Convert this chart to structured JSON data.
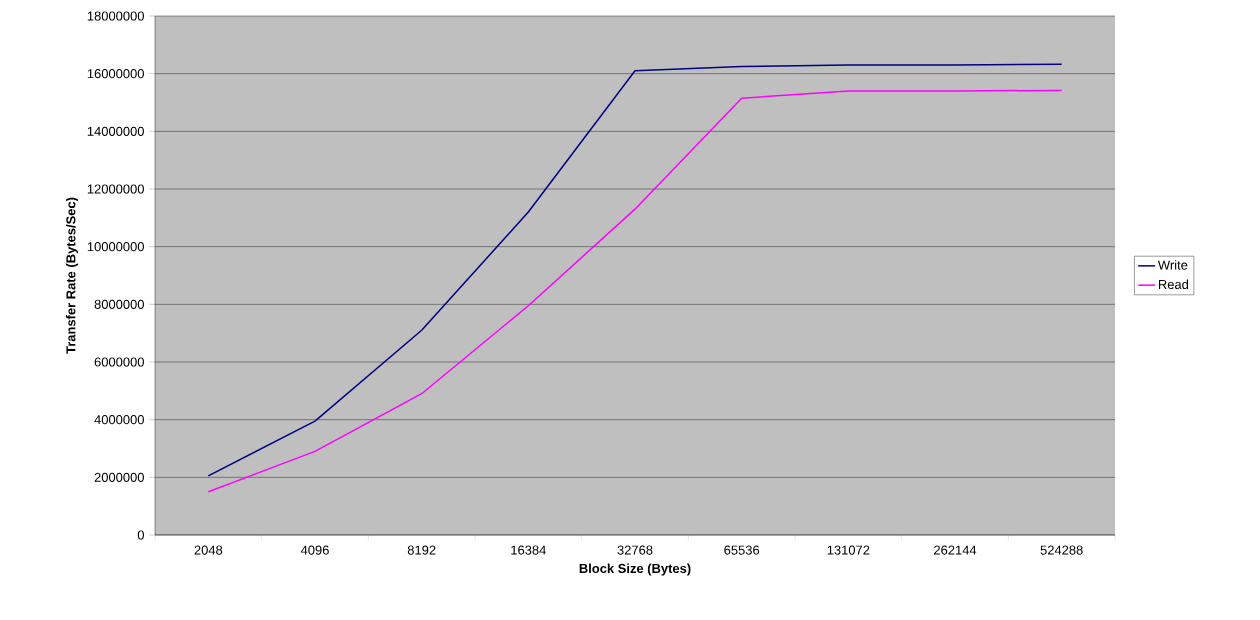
{
  "chart_data": {
    "type": "line",
    "xlabel": "Block Size (Bytes)",
    "ylabel": "Transfer Rate (Bytes/Sec)",
    "categories": [
      "2048",
      "4096",
      "8192",
      "16384",
      "32768",
      "65536",
      "131072",
      "262144",
      "524288"
    ],
    "series": [
      {
        "name": "Write",
        "color": "#000080",
        "values": [
          2050000,
          3950000,
          7100000,
          11200000,
          16100000,
          16250000,
          16300000,
          16300000,
          16330000
        ]
      },
      {
        "name": "Read",
        "color": "#ff00ff",
        "values": [
          1500000,
          2900000,
          4900000,
          7950000,
          11300000,
          15150000,
          15400000,
          15400000,
          15420000
        ]
      }
    ],
    "ylim": [
      0,
      18000000
    ],
    "yticks": [
      0,
      2000000,
      4000000,
      6000000,
      8000000,
      10000000,
      12000000,
      14000000,
      16000000,
      18000000
    ],
    "grid": "y",
    "legend": "right",
    "marker": "none",
    "line_style": "solid"
  }
}
